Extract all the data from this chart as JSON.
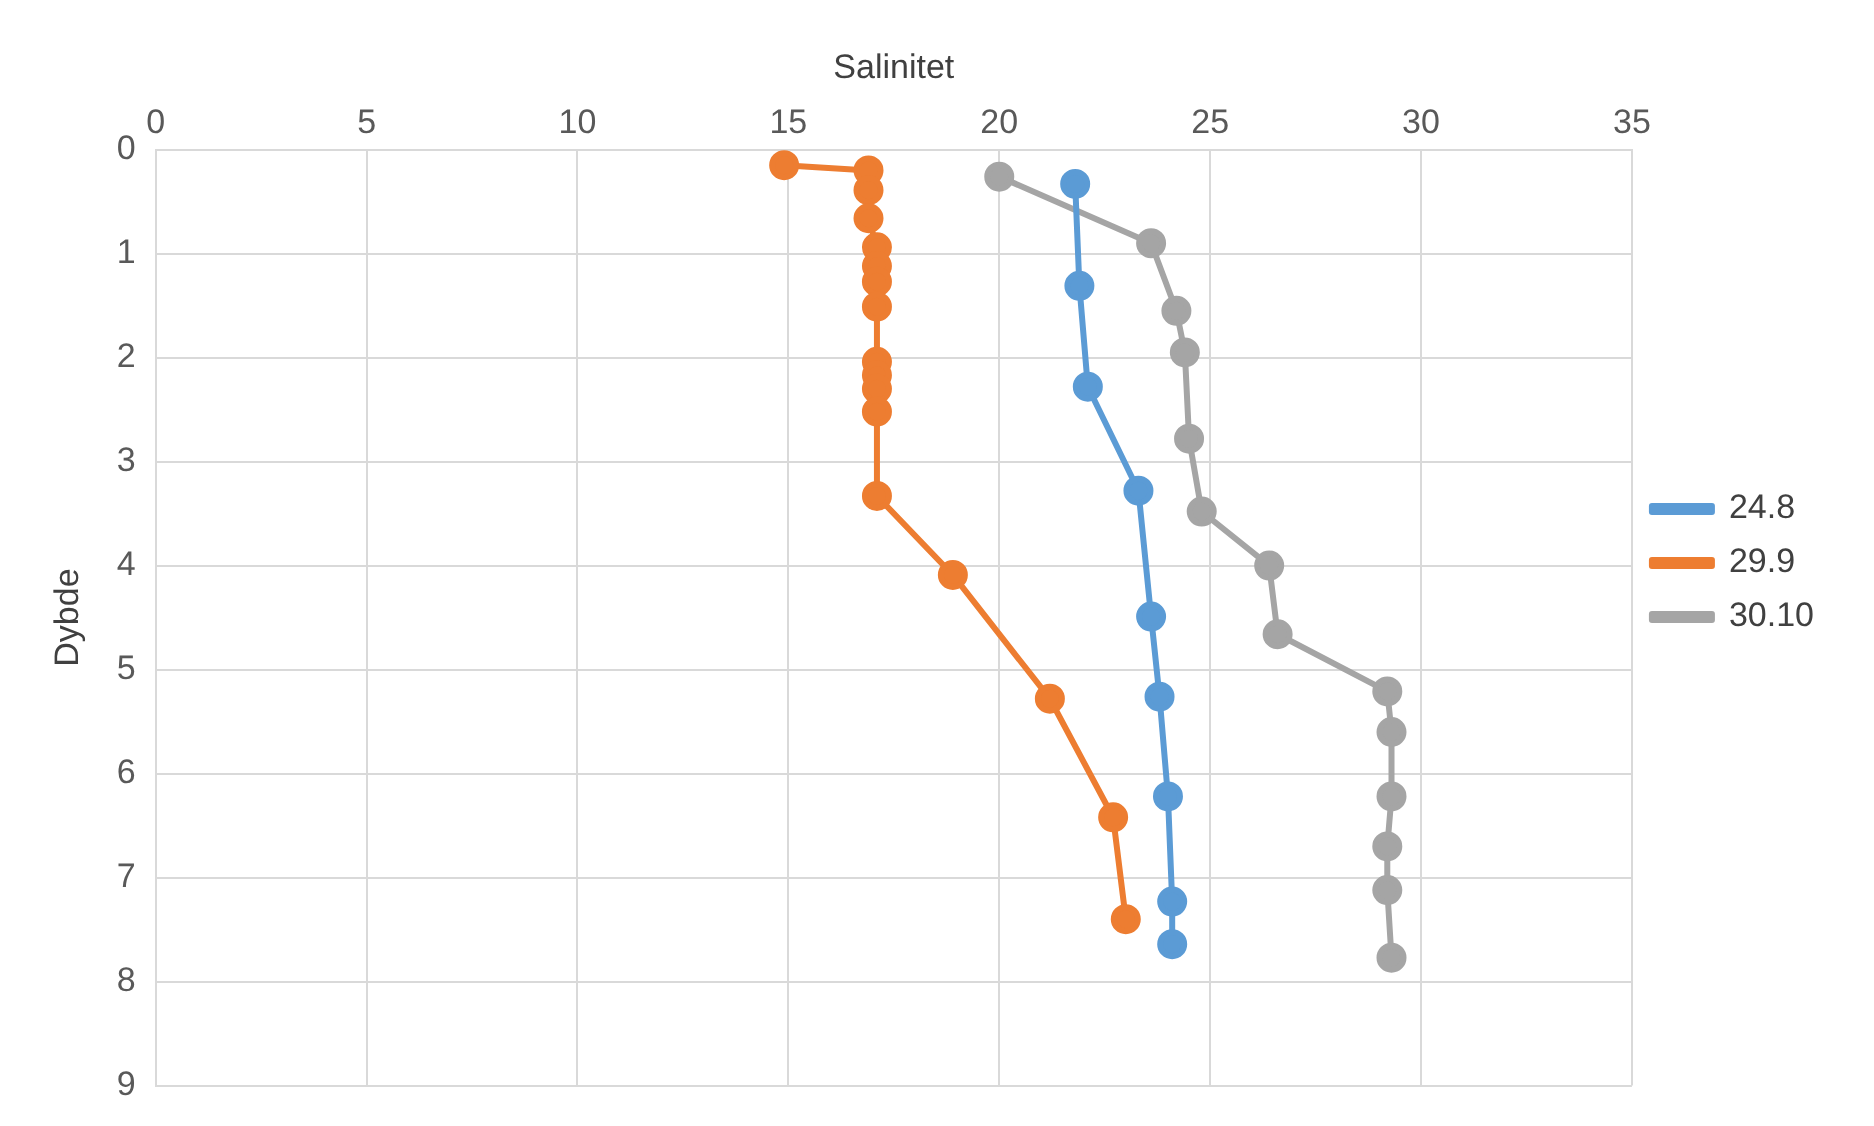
{
  "chart_data": {
    "type": "line",
    "xlabel": "Salinitet",
    "ylabel": "Dybde",
    "xlim": [
      0,
      35
    ],
    "xticks": [
      0,
      5,
      10,
      15,
      20,
      25,
      30,
      35
    ],
    "ylim": [
      9,
      0
    ],
    "yticks": [
      0,
      1,
      2,
      3,
      4,
      5,
      6,
      7,
      8,
      9
    ],
    "grid": true,
    "legend": "right",
    "marker": "circle",
    "line_style": "solid",
    "series": [
      {
        "name": "24.8",
        "color": "#5b9bd5",
        "x": [
          21.8,
          21.9,
          22.1,
          23.3,
          23.6,
          23.8,
          24.0,
          24.1,
          24.1
        ],
        "values": [
          0.33,
          1.31,
          2.28,
          3.28,
          4.49,
          5.26,
          6.22,
          7.23,
          7.64
        ]
      },
      {
        "name": "29.9",
        "color": "#ed7d31",
        "x": [
          14.9,
          16.9,
          16.9,
          16.9,
          17.1,
          17.1,
          17.1,
          17.1,
          17.1,
          17.1,
          17.1,
          17.1,
          17.1,
          18.9,
          21.2,
          22.7,
          23.0
        ],
        "values": [
          0.15,
          0.2,
          0.39,
          0.66,
          0.94,
          1.12,
          1.27,
          1.51,
          2.04,
          2.17,
          2.3,
          2.52,
          3.33,
          4.09,
          5.28,
          6.42,
          7.4
        ]
      },
      {
        "name": "30.10",
        "color": "#a5a5a5",
        "x": [
          20.0,
          23.6,
          24.2,
          24.4,
          24.5,
          24.8,
          26.4,
          26.6,
          29.2,
          29.3,
          29.3,
          29.2,
          29.2,
          29.3
        ],
        "values": [
          0.26,
          0.9,
          1.55,
          1.95,
          2.78,
          3.48,
          4.0,
          4.66,
          5.21,
          5.6,
          6.22,
          6.7,
          7.12,
          7.77
        ]
      }
    ]
  }
}
